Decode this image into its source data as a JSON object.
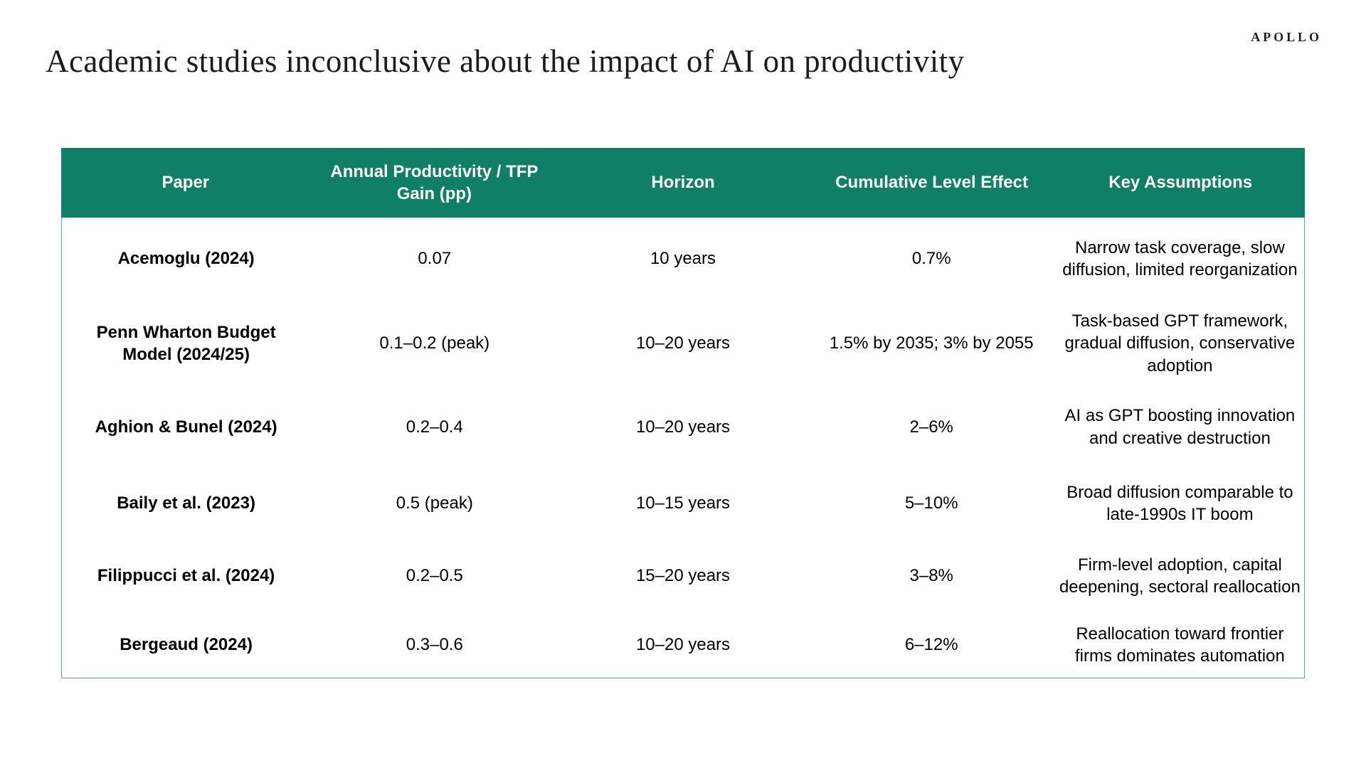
{
  "brand": {
    "logo_text": "APOLLO"
  },
  "page": {
    "title": "Academic studies inconclusive about the impact of AI on productivity"
  },
  "colors": {
    "header_bg": "#0F8065",
    "header_text": "#FFFFFF",
    "table_border": "#5FA496",
    "title_text": "#1B1B1B"
  },
  "table": {
    "columns": [
      "Paper",
      "Annual Productivity / TFP Gain (pp)",
      "Horizon",
      "Cumulative Level Effect",
      "Key Assumptions"
    ],
    "rows": [
      {
        "paper": "Acemoglu (2024)",
        "gain": "0.07",
        "horizon": "10 years",
        "effect": "0.7%",
        "assumptions": "Narrow task coverage, slow diffusion, limited reorganization"
      },
      {
        "paper": "Penn Wharton Budget Model (2024/25)",
        "gain": "0.1–0.2 (peak)",
        "horizon": "10–20 years",
        "effect": "1.5% by 2035; 3% by 2055",
        "assumptions": "Task-based GPT framework, gradual diffusion, conservative adoption"
      },
      {
        "paper": "Aghion & Bunel (2024)",
        "gain": "0.2–0.4",
        "horizon": "10–20 years",
        "effect": "2–6%",
        "assumptions": "AI as GPT boosting innovation and creative destruction"
      },
      {
        "paper": "Baily et al. (2023)",
        "gain": "0.5 (peak)",
        "horizon": "10–15 years",
        "effect": "5–10%",
        "assumptions": "Broad diffusion comparable to late-1990s IT boom"
      },
      {
        "paper": "Filippucci et al. (2024)",
        "gain": "0.2–0.5",
        "horizon": "15–20 years",
        "effect": "3–8%",
        "assumptions": "Firm-level adoption, capital deepening, sectoral reallocation"
      },
      {
        "paper": "Bergeaud (2024)",
        "gain": "0.3–0.6",
        "horizon": "10–20 years",
        "effect": "6–12%",
        "assumptions": "Reallocation toward frontier firms dominates automation"
      }
    ]
  }
}
